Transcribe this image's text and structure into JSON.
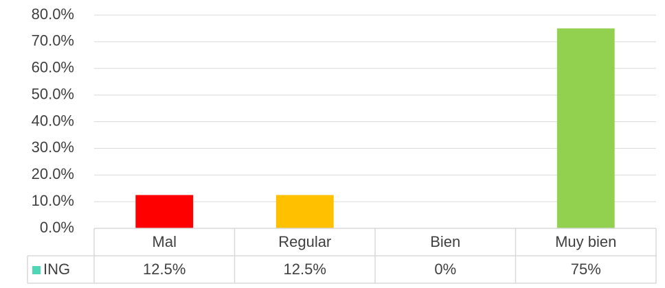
{
  "chart_data": {
    "type": "bar",
    "categories": [
      "Mal",
      "Regular",
      "Bien",
      "Muy bien"
    ],
    "series": [
      {
        "name": "ING",
        "color": "#4fd6b4",
        "values": [
          12.5,
          12.5,
          0,
          75
        ],
        "value_labels": [
          "12.5%",
          "12.5%",
          "0%",
          "75%"
        ],
        "point_colors": [
          "#ff0000",
          "#ffc000",
          "#4fd6b4",
          "#92d050"
        ]
      }
    ],
    "ylim": [
      0,
      80
    ],
    "yticks": [
      {
        "value": 0,
        "label": "0.0%"
      },
      {
        "value": 10,
        "label": "10.0%"
      },
      {
        "value": 20,
        "label": "20.0%"
      },
      {
        "value": 30,
        "label": "30.0%"
      },
      {
        "value": 40,
        "label": "40.0%"
      },
      {
        "value": 50,
        "label": "50.0%"
      },
      {
        "value": 60,
        "label": "60.0%"
      },
      {
        "value": 70,
        "label": "70.0%"
      },
      {
        "value": 80,
        "label": "80.0%"
      }
    ],
    "grid": true,
    "data_table": true
  }
}
